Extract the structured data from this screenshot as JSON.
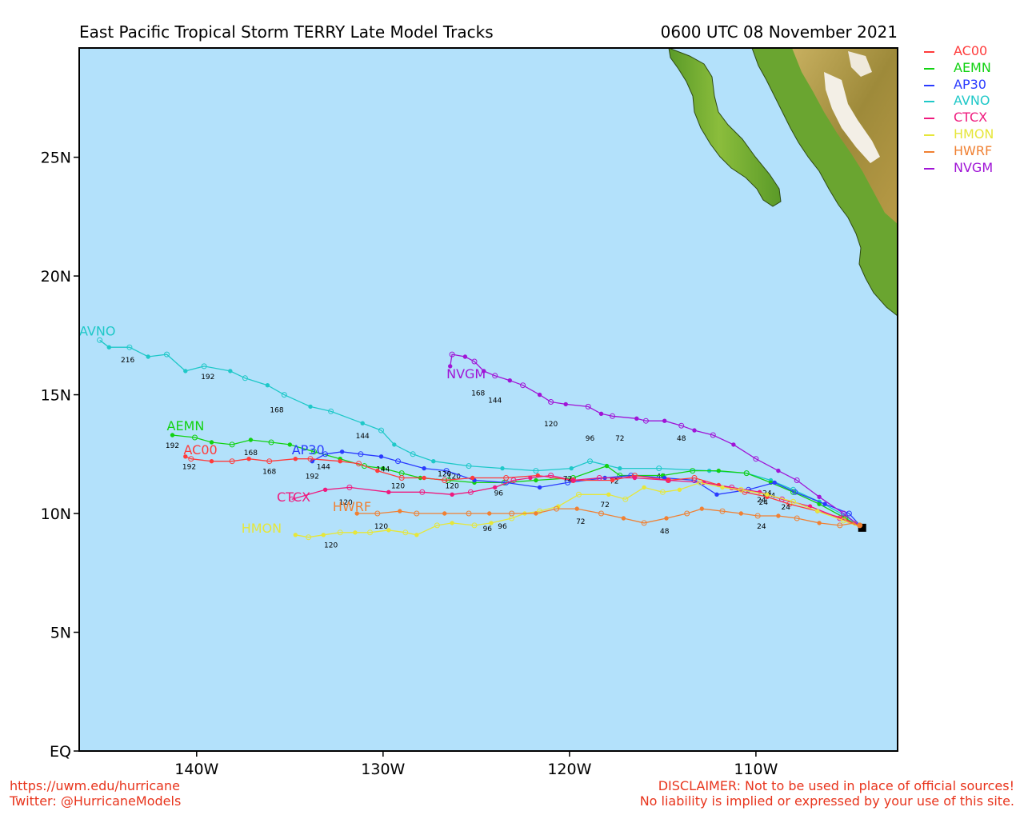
{
  "header": {
    "title": "East Pacific Tropical Storm TERRY Late Model Tracks",
    "datetime": "0600 UTC 08 November 2021"
  },
  "axes": {
    "lat_labels": [
      {
        "lat": 25,
        "text": "25N"
      },
      {
        "lat": 20,
        "text": "20N"
      },
      {
        "lat": 15,
        "text": "15N"
      },
      {
        "lat": 10,
        "text": "10N"
      },
      {
        "lat": 5,
        "text": "5N"
      },
      {
        "lat": 0,
        "text": "EQ"
      }
    ],
    "lon_labels": [
      {
        "lon": -140,
        "text": "140W"
      },
      {
        "lon": -130,
        "text": "130W"
      },
      {
        "lon": -120,
        "text": "120W"
      },
      {
        "lon": -110,
        "text": "110W"
      }
    ],
    "lon_range": [
      -146.3,
      -102.4
    ],
    "lat_range": [
      0,
      29.6
    ]
  },
  "colors": {
    "ocean": "#b3e1fb",
    "land_low": "#5a9a28",
    "land_mid": "#b8a54a",
    "land_high": "#ffffff"
  },
  "storm": {
    "lon": -104.3,
    "lat": 9.4
  },
  "legend": [
    {
      "name": "AC00",
      "color": "#ff3b3b"
    },
    {
      "name": "AEMN",
      "color": "#12d212"
    },
    {
      "name": "AP30",
      "color": "#2a3bff"
    },
    {
      "name": "AVNO",
      "color": "#1fc8c8"
    },
    {
      "name": "CTCX",
      "color": "#ef1a7e"
    },
    {
      "name": "HMON",
      "color": "#e6e63a"
    },
    {
      "name": "HWRF",
      "color": "#f08032"
    },
    {
      "name": "NVGM",
      "color": "#a015d6"
    }
  ],
  "tracks": [
    {
      "name": "AVNO",
      "color": "#1fc8c8",
      "label": "AVNO",
      "label_pos": [
        -146.3,
        17.5
      ],
      "points": [
        [
          -104.3,
          9.4
        ],
        [
          -105.2,
          9.9
        ],
        [
          -106.6,
          10.5
        ],
        [
          -108.0,
          11.0
        ],
        [
          -109.2,
          11.4
        ],
        [
          -110.5,
          11.7
        ],
        [
          -112.5,
          11.8
        ],
        [
          -115.2,
          11.9
        ],
        [
          -117.3,
          11.9
        ],
        [
          -118.9,
          12.2
        ],
        [
          -119.9,
          11.9
        ],
        [
          -121.8,
          11.8
        ],
        [
          -123.6,
          11.9
        ],
        [
          -125.4,
          12.0
        ],
        [
          -127.3,
          12.2
        ],
        [
          -128.4,
          12.5
        ],
        [
          -129.4,
          12.9
        ],
        [
          -130.1,
          13.5
        ],
        [
          -131.1,
          13.8
        ],
        [
          -132.8,
          14.3
        ],
        [
          -133.9,
          14.5
        ],
        [
          -135.3,
          15.0
        ],
        [
          -136.2,
          15.4
        ],
        [
          -137.4,
          15.7
        ],
        [
          -138.2,
          16.0
        ],
        [
          -139.6,
          16.2
        ],
        [
          -140.6,
          16.0
        ],
        [
          -141.6,
          16.7
        ],
        [
          -142.6,
          16.6
        ],
        [
          -143.6,
          17.0
        ],
        [
          -144.7,
          17.0
        ],
        [
          -145.2,
          17.3
        ]
      ],
      "hours": [
        {
          "h": "48",
          "lon": -115.1,
          "lat": 11.6
        },
        {
          "h": "120",
          "lon": -126.2,
          "lat": 11.6
        },
        {
          "h": "144",
          "lon": -131.1,
          "lat": 13.3
        },
        {
          "h": "168",
          "lon": -135.7,
          "lat": 14.4
        },
        {
          "h": "192",
          "lon": -139.4,
          "lat": 15.8
        },
        {
          "h": "216",
          "lon": -143.7,
          "lat": 16.5
        }
      ]
    },
    {
      "name": "AEMN",
      "color": "#12d212",
      "label": "AEMN",
      "label_pos": [
        -141.6,
        13.5
      ],
      "points": [
        [
          -104.3,
          9.4
        ],
        [
          -105.2,
          9.8
        ],
        [
          -106.6,
          10.4
        ],
        [
          -108.0,
          10.9
        ],
        [
          -109.2,
          11.3
        ],
        [
          -110.5,
          11.7
        ],
        [
          -112.0,
          11.8
        ],
        [
          -113.4,
          11.8
        ],
        [
          -115.0,
          11.6
        ],
        [
          -117.3,
          11.6
        ],
        [
          -118.0,
          12.0
        ],
        [
          -119.8,
          11.5
        ],
        [
          -121.8,
          11.4
        ],
        [
          -123.5,
          11.3
        ],
        [
          -125.1,
          11.3
        ],
        [
          -126.5,
          11.4
        ],
        [
          -128.0,
          11.5
        ],
        [
          -129.0,
          11.7
        ],
        [
          -130.0,
          11.9
        ],
        [
          -131.0,
          12.0
        ],
        [
          -132.3,
          12.3
        ],
        [
          -133.7,
          12.6
        ],
        [
          -135.0,
          12.9
        ],
        [
          -136.0,
          13.0
        ],
        [
          -137.1,
          13.1
        ],
        [
          -138.1,
          12.9
        ],
        [
          -139.2,
          13.0
        ],
        [
          -140.1,
          13.2
        ],
        [
          -141.3,
          13.3
        ]
      ],
      "hours": [
        {
          "h": "24",
          "lon": -109.4,
          "lat": 10.9
        },
        {
          "h": "120",
          "lon": -126.3,
          "lat": 11.2
        },
        {
          "h": "144",
          "lon": -130.0,
          "lat": 11.9
        },
        {
          "h": "168",
          "lon": -137.1,
          "lat": 12.6
        },
        {
          "h": "192",
          "lon": -141.3,
          "lat": 12.9
        }
      ]
    },
    {
      "name": "AP30",
      "color": "#2a3bff",
      "label": "AP30",
      "label_pos": [
        -134.9,
        12.5
      ],
      "points": [
        [
          -104.3,
          9.4
        ],
        [
          -105.0,
          10.0
        ],
        [
          -106.3,
          10.4
        ],
        [
          -107.9,
          10.9
        ],
        [
          -109.0,
          11.3
        ],
        [
          -110.4,
          11.0
        ],
        [
          -112.1,
          10.8
        ],
        [
          -113.3,
          11.4
        ],
        [
          -114.9,
          11.5
        ],
        [
          -116.7,
          11.6
        ],
        [
          -118.1,
          11.5
        ],
        [
          -120.1,
          11.3
        ],
        [
          -121.6,
          11.1
        ],
        [
          -123.4,
          11.3
        ],
        [
          -125.1,
          11.4
        ],
        [
          -126.6,
          11.8
        ],
        [
          -127.8,
          11.9
        ],
        [
          -129.2,
          12.2
        ],
        [
          -130.1,
          12.4
        ],
        [
          -131.2,
          12.5
        ],
        [
          -132.2,
          12.6
        ],
        [
          -133.1,
          12.5
        ],
        [
          -133.8,
          12.2
        ]
      ],
      "hours": [
        {
          "h": "24",
          "lon": -109.2,
          "lat": 10.8
        },
        {
          "h": "72",
          "lon": -117.6,
          "lat": 11.4
        },
        {
          "h": "120",
          "lon": -126.7,
          "lat": 11.7
        },
        {
          "h": "144",
          "lon": -133.2,
          "lat": 12.0
        },
        {
          "h": "192",
          "lon": -133.8,
          "lat": 11.6
        }
      ]
    },
    {
      "name": "AC00",
      "color": "#ff3b3b",
      "label": "AC00",
      "label_pos": [
        -140.7,
        12.5
      ],
      "points": [
        [
          -104.3,
          9.4
        ],
        [
          -105.3,
          9.8
        ],
        [
          -106.7,
          10.1
        ],
        [
          -108.2,
          10.4
        ],
        [
          -109.4,
          10.7
        ],
        [
          -110.6,
          10.9
        ],
        [
          -112.0,
          11.2
        ],
        [
          -113.3,
          11.5
        ],
        [
          -114.7,
          11.4
        ],
        [
          -116.5,
          11.6
        ],
        [
          -117.7,
          11.4
        ],
        [
          -119.8,
          11.4
        ],
        [
          -121.7,
          11.6
        ],
        [
          -123.4,
          11.5
        ],
        [
          -125.2,
          11.5
        ],
        [
          -126.7,
          11.4
        ],
        [
          -127.8,
          11.5
        ],
        [
          -129.0,
          11.5
        ],
        [
          -130.3,
          11.8
        ],
        [
          -131.3,
          12.1
        ],
        [
          -132.3,
          12.2
        ],
        [
          -133.9,
          12.3
        ],
        [
          -134.7,
          12.3
        ],
        [
          -136.1,
          12.2
        ],
        [
          -137.2,
          12.3
        ],
        [
          -138.1,
          12.2
        ],
        [
          -139.2,
          12.2
        ],
        [
          -140.3,
          12.3
        ],
        [
          -140.6,
          12.4
        ]
      ],
      "hours": [
        {
          "h": "24",
          "lon": -108.4,
          "lat": 10.3
        },
        {
          "h": "120",
          "lon": -129.2,
          "lat": 11.2
        },
        {
          "h": "168",
          "lon": -136.1,
          "lat": 11.8
        },
        {
          "h": "192",
          "lon": -140.4,
          "lat": 12.0
        }
      ]
    },
    {
      "name": "CTCX",
      "color": "#ef1a7e",
      "label": "CTCX",
      "label_pos": [
        -135.7,
        10.5
      ],
      "points": [
        [
          -104.3,
          9.4
        ],
        [
          -105.5,
          9.8
        ],
        [
          -107.1,
          10.3
        ],
        [
          -108.6,
          10.6
        ],
        [
          -109.8,
          10.9
        ],
        [
          -111.3,
          11.1
        ],
        [
          -112.8,
          11.3
        ],
        [
          -114.7,
          11.4
        ],
        [
          -116.5,
          11.5
        ],
        [
          -118.4,
          11.5
        ],
        [
          -119.8,
          11.4
        ],
        [
          -121.0,
          11.6
        ],
        [
          -122.1,
          11.5
        ],
        [
          -123.0,
          11.4
        ],
        [
          -124.0,
          11.1
        ],
        [
          -125.3,
          10.9
        ],
        [
          -126.3,
          10.8
        ],
        [
          -127.9,
          10.9
        ],
        [
          -129.7,
          10.9
        ],
        [
          -131.8,
          11.1
        ],
        [
          -133.1,
          11.0
        ],
        [
          -134.9,
          10.6
        ]
      ],
      "hours": [
        {
          "h": "24",
          "lon": -109.7,
          "lat": 10.6
        },
        {
          "h": "72",
          "lon": -120.1,
          "lat": 11.5
        },
        {
          "h": "96",
          "lon": -123.8,
          "lat": 10.9
        },
        {
          "h": "120",
          "lon": -132.0,
          "lat": 10.5
        }
      ]
    },
    {
      "name": "HMON",
      "color": "#e6e63a",
      "label": "HMON",
      "label_pos": [
        -137.6,
        9.2
      ],
      "points": [
        [
          -104.3,
          9.4
        ],
        [
          -105.3,
          9.7
        ],
        [
          -106.7,
          10.1
        ],
        [
          -108.0,
          10.5
        ],
        [
          -109.4,
          10.8
        ],
        [
          -110.8,
          11.0
        ],
        [
          -111.8,
          11.1
        ],
        [
          -113.0,
          11.3
        ],
        [
          -114.1,
          11.0
        ],
        [
          -115.0,
          10.9
        ],
        [
          -116.0,
          11.1
        ],
        [
          -117.0,
          10.6
        ],
        [
          -117.9,
          10.8
        ],
        [
          -119.5,
          10.8
        ],
        [
          -120.6,
          10.3
        ],
        [
          -121.6,
          10.1
        ],
        [
          -122.4,
          10.0
        ],
        [
          -123.1,
          9.8
        ],
        [
          -124.2,
          9.6
        ],
        [
          -125.1,
          9.5
        ],
        [
          -126.3,
          9.6
        ],
        [
          -127.1,
          9.5
        ],
        [
          -128.2,
          9.1
        ],
        [
          -128.8,
          9.2
        ],
        [
          -129.7,
          9.3
        ],
        [
          -130.7,
          9.2
        ],
        [
          -131.5,
          9.2
        ],
        [
          -132.3,
          9.2
        ],
        [
          -133.2,
          9.1
        ],
        [
          -134.0,
          9.0
        ],
        [
          -134.7,
          9.1
        ]
      ],
      "hours": [
        {
          "h": "24",
          "lon": -109.6,
          "lat": 10.5
        },
        {
          "h": "72",
          "lon": -118.1,
          "lat": 10.4
        },
        {
          "h": "96",
          "lon": -124.4,
          "lat": 9.4
        },
        {
          "h": "120",
          "lon": -132.8,
          "lat": 8.7
        }
      ]
    },
    {
      "name": "HWRF",
      "color": "#f08032",
      "label": "HWRF",
      "label_pos": [
        -132.7,
        10.1
      ],
      "points": [
        [
          -104.7,
          9.6
        ],
        [
          -105.5,
          9.5
        ],
        [
          -106.6,
          9.6
        ],
        [
          -107.8,
          9.8
        ],
        [
          -108.8,
          9.9
        ],
        [
          -109.9,
          9.9
        ],
        [
          -110.8,
          10.0
        ],
        [
          -111.8,
          10.1
        ],
        [
          -112.9,
          10.2
        ],
        [
          -113.7,
          10.0
        ],
        [
          -114.8,
          9.8
        ],
        [
          -116.0,
          9.6
        ],
        [
          -117.1,
          9.8
        ],
        [
          -118.3,
          10.0
        ],
        [
          -119.6,
          10.2
        ],
        [
          -120.7,
          10.2
        ],
        [
          -121.8,
          10.0
        ],
        [
          -123.1,
          10.0
        ],
        [
          -124.3,
          10.0
        ],
        [
          -125.4,
          10.0
        ],
        [
          -126.7,
          10.0
        ],
        [
          -128.2,
          10.0
        ],
        [
          -129.1,
          10.1
        ],
        [
          -130.3,
          10.0
        ],
        [
          -131.4,
          10.0
        ]
      ],
      "hours": [
        {
          "h": "24",
          "lon": -109.7,
          "lat": 9.5
        },
        {
          "h": "48",
          "lon": -114.9,
          "lat": 9.3
        },
        {
          "h": "72",
          "lon": -119.4,
          "lat": 9.7
        },
        {
          "h": "96",
          "lon": -123.6,
          "lat": 9.5
        },
        {
          "h": "120",
          "lon": -130.1,
          "lat": 9.5
        }
      ]
    },
    {
      "name": "NVGM",
      "color": "#a015d6",
      "label": "NVGM",
      "label_pos": [
        -126.6,
        15.7
      ],
      "points": [
        [
          -104.3,
          9.4
        ],
        [
          -105.3,
          10.0
        ],
        [
          -106.6,
          10.7
        ],
        [
          -107.8,
          11.4
        ],
        [
          -108.8,
          11.8
        ],
        [
          -110.0,
          12.3
        ],
        [
          -111.2,
          12.9
        ],
        [
          -112.3,
          13.3
        ],
        [
          -113.3,
          13.5
        ],
        [
          -114.0,
          13.7
        ],
        [
          -114.9,
          13.9
        ],
        [
          -115.9,
          13.9
        ],
        [
          -116.4,
          14.0
        ],
        [
          -117.7,
          14.1
        ],
        [
          -118.3,
          14.2
        ],
        [
          -119.0,
          14.5
        ],
        [
          -120.2,
          14.6
        ],
        [
          -121.0,
          14.7
        ],
        [
          -121.6,
          15.0
        ],
        [
          -122.5,
          15.4
        ],
        [
          -123.2,
          15.6
        ],
        [
          -124.0,
          15.8
        ],
        [
          -124.6,
          16.0
        ],
        [
          -125.1,
          16.4
        ],
        [
          -125.6,
          16.6
        ],
        [
          -126.3,
          16.7
        ],
        [
          -126.4,
          16.2
        ]
      ],
      "hours": [
        {
          "h": "48",
          "lon": -114.0,
          "lat": 13.2
        },
        {
          "h": "72",
          "lon": -117.3,
          "lat": 13.2
        },
        {
          "h": "96",
          "lon": -118.9,
          "lat": 13.2
        },
        {
          "h": "120",
          "lon": -121.0,
          "lat": 13.8
        },
        {
          "h": "144",
          "lon": -124.0,
          "lat": 14.8
        },
        {
          "h": "168",
          "lon": -124.9,
          "lat": 15.1
        }
      ]
    }
  ],
  "footer": {
    "url": "https://uwm.edu/hurricane",
    "twitter": "Twitter: @HurricaneModels",
    "disclaimer_1": "DISCLAIMER: Not to be used in place of official sources!",
    "disclaimer_2": "No liability is implied or expressed by your use of this site."
  }
}
